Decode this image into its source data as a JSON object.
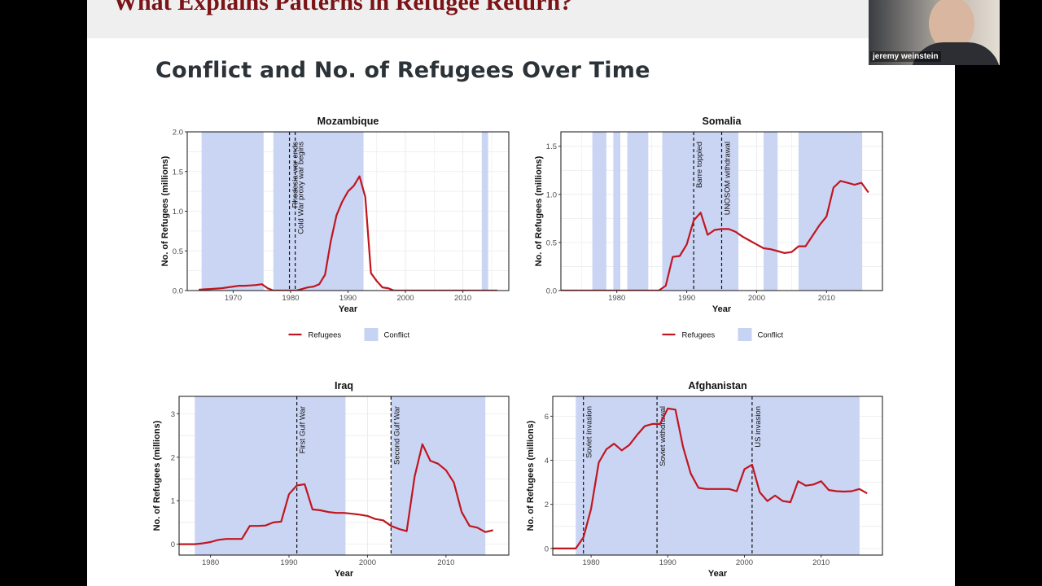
{
  "slide": {
    "title": "What Explains Patterns in Refugee Return?",
    "frame_title": "Conflict and No. of Refugees Over Time"
  },
  "webcam": {
    "name": "jeremy weinstein"
  },
  "colors": {
    "refugees": "#c0161f",
    "conflict": "#c7d3f3",
    "title": "#7a1417"
  },
  "chart_data": [
    {
      "type": "line",
      "title": "Mozambique",
      "xlabel": "Year",
      "ylabel": "No. of Refugees (millions)",
      "xlim": [
        1962,
        2018
      ],
      "ylim": [
        0,
        2.0
      ],
      "xticks": [
        1970,
        1980,
        1990,
        2000,
        2010
      ],
      "yticks": [
        0,
        0.5,
        1.0,
        1.5,
        2.0
      ],
      "ytick_labels": [
        "0.0",
        "0.5",
        "1.0",
        "1.5",
        "2.0"
      ],
      "legend": "bottom",
      "conflict_periods": [
        [
          1964.5,
          1975.3
        ],
        [
          1977,
          1992.7
        ],
        [
          2013.3,
          2014.4
        ]
      ],
      "events": [
        {
          "x": 1979.8,
          "label": "Rhodesia war ends"
        },
        {
          "x": 1980.8,
          "label": "Cold War proxy war begins"
        }
      ],
      "series": [
        {
          "name": "Refugees",
          "x": [
            1964,
            1965,
            1966,
            1967,
            1968,
            1969,
            1970,
            1971,
            1972,
            1973,
            1974,
            1975,
            1976,
            1977,
            1978,
            1979,
            1980,
            1981,
            1982,
            1983,
            1984,
            1985,
            1986,
            1987,
            1988,
            1989,
            1990,
            1991,
            1992,
            1993,
            1994,
            1995,
            1996,
            1997,
            1998,
            2000,
            2005,
            2010,
            2016
          ],
          "values": [
            0.01,
            0.015,
            0.02,
            0.025,
            0.03,
            0.04,
            0.05,
            0.06,
            0.06,
            0.065,
            0.07,
            0.08,
            0.03,
            0.0,
            0.0,
            0.0,
            0.0,
            0.0,
            0.02,
            0.04,
            0.05,
            0.08,
            0.2,
            0.62,
            0.95,
            1.12,
            1.25,
            1.32,
            1.44,
            1.18,
            0.22,
            0.12,
            0.04,
            0.03,
            0.0,
            0.0,
            0.0,
            0.0,
            0.0
          ]
        }
      ]
    },
    {
      "type": "line",
      "title": "Somalia",
      "xlabel": "Year",
      "ylabel": "No. of Refugees (millions)",
      "xlim": [
        1972,
        2018
      ],
      "ylim": [
        0,
        1.65
      ],
      "xticks": [
        1980,
        1990,
        2000,
        2010
      ],
      "yticks": [
        0,
        0.5,
        1.0,
        1.5
      ],
      "ytick_labels": [
        "0.0",
        "0.5",
        "1.0",
        "1.5"
      ],
      "legend": "bottom",
      "conflict_periods": [
        [
          1976.5,
          1978.5
        ],
        [
          1979.5,
          1980.5
        ],
        [
          1981.5,
          1984.5
        ],
        [
          1986.5,
          1997.4
        ],
        [
          2001,
          2003
        ],
        [
          2006,
          2015.1
        ]
      ],
      "events": [
        {
          "x": 1991,
          "label": "Barre toppled"
        },
        {
          "x": 1995,
          "label": "UNOSOM withdrawal"
        }
      ],
      "series": [
        {
          "name": "Refugees",
          "x": [
            1972,
            1980,
            1986,
            1987,
            1988,
            1989,
            1990,
            1991,
            1992,
            1993,
            1994,
            1995,
            1996,
            1997,
            1998,
            1999,
            2000,
            2001,
            2002,
            2003,
            2004,
            2005,
            2006,
            2007,
            2008,
            2009,
            2010,
            2011,
            2012,
            2013,
            2014,
            2015,
            2016
          ],
          "values": [
            0.0,
            0.0,
            0.0,
            0.05,
            0.35,
            0.36,
            0.48,
            0.73,
            0.81,
            0.58,
            0.63,
            0.64,
            0.64,
            0.61,
            0.56,
            0.52,
            0.48,
            0.44,
            0.43,
            0.41,
            0.39,
            0.4,
            0.46,
            0.46,
            0.57,
            0.68,
            0.77,
            1.07,
            1.14,
            1.12,
            1.1,
            1.12,
            1.02
          ]
        }
      ]
    },
    {
      "type": "line",
      "title": "Iraq",
      "xlabel": "Year",
      "ylabel": "No. of Refugees (millions)",
      "xlim": [
        1976,
        2018
      ],
      "ylim": [
        -0.25,
        3.4
      ],
      "xticks": [
        1980,
        1990,
        2000,
        2010
      ],
      "yticks": [
        0,
        1,
        2,
        3
      ],
      "ytick_labels": [
        "0",
        "1",
        "2",
        "3"
      ],
      "legend": "none",
      "conflict_periods": [
        [
          1978,
          1997.2
        ],
        [
          2003,
          2015
        ]
      ],
      "events": [
        {
          "x": 1991,
          "label": "First Gulf War"
        },
        {
          "x": 2003,
          "label": "Second Gulf War"
        }
      ],
      "series": [
        {
          "name": "Refugees",
          "x": [
            1976,
            1978,
            1979,
            1980,
            1981,
            1982,
            1983,
            1984,
            1985,
            1986,
            1987,
            1988,
            1989,
            1990,
            1991,
            1992,
            1993,
            1994,
            1995,
            1996,
            1997,
            1998,
            1999,
            2000,
            2001,
            2002,
            2003,
            2004,
            2005,
            2006,
            2007,
            2008,
            2009,
            2010,
            2011,
            2012,
            2013,
            2014,
            2015,
            2016
          ],
          "values": [
            0.0,
            0.0,
            0.02,
            0.05,
            0.1,
            0.12,
            0.12,
            0.12,
            0.42,
            0.42,
            0.43,
            0.5,
            0.52,
            1.15,
            1.35,
            1.38,
            0.8,
            0.78,
            0.74,
            0.72,
            0.72,
            0.7,
            0.68,
            0.65,
            0.58,
            0.55,
            0.42,
            0.35,
            0.3,
            1.55,
            2.3,
            1.92,
            1.85,
            1.7,
            1.42,
            0.74,
            0.42,
            0.38,
            0.28,
            0.32
          ]
        }
      ]
    },
    {
      "type": "line",
      "title": "Afghanistan",
      "xlabel": "Year",
      "ylabel": "No. of Refugees (millions)",
      "xlim": [
        1975,
        2018
      ],
      "ylim": [
        -0.3,
        6.9
      ],
      "xticks": [
        1980,
        1990,
        2000,
        2010
      ],
      "yticks": [
        0,
        2,
        4,
        6
      ],
      "ytick_labels": [
        "0",
        "2",
        "4",
        "6"
      ],
      "legend": "none",
      "conflict_periods": [
        [
          1978,
          2015
        ]
      ],
      "events": [
        {
          "x": 1979,
          "label": "Soviet invasion"
        },
        {
          "x": 1988.6,
          "label": "Soviet withdrawal"
        },
        {
          "x": 2001,
          "label": "US invasion"
        }
      ],
      "series": [
        {
          "name": "Refugees",
          "x": [
            1975,
            1978,
            1979,
            1980,
            1981,
            1982,
            1983,
            1984,
            1985,
            1986,
            1987,
            1988,
            1989,
            1990,
            1991,
            1992,
            1993,
            1994,
            1995,
            1996,
            1997,
            1998,
            1999,
            2000,
            2001,
            2002,
            2003,
            2004,
            2005,
            2006,
            2007,
            2008,
            2009,
            2010,
            2011,
            2012,
            2013,
            2014,
            2015,
            2016
          ],
          "values": [
            0.0,
            0.0,
            0.5,
            1.8,
            3.9,
            4.5,
            4.75,
            4.45,
            4.7,
            5.15,
            5.55,
            5.65,
            5.65,
            6.35,
            6.3,
            4.6,
            3.4,
            2.75,
            2.7,
            2.7,
            2.7,
            2.7,
            2.6,
            3.6,
            3.8,
            2.55,
            2.15,
            2.4,
            2.15,
            2.1,
            3.05,
            2.85,
            2.9,
            3.05,
            2.65,
            2.6,
            2.58,
            2.6,
            2.7,
            2.5
          ]
        }
      ]
    }
  ]
}
